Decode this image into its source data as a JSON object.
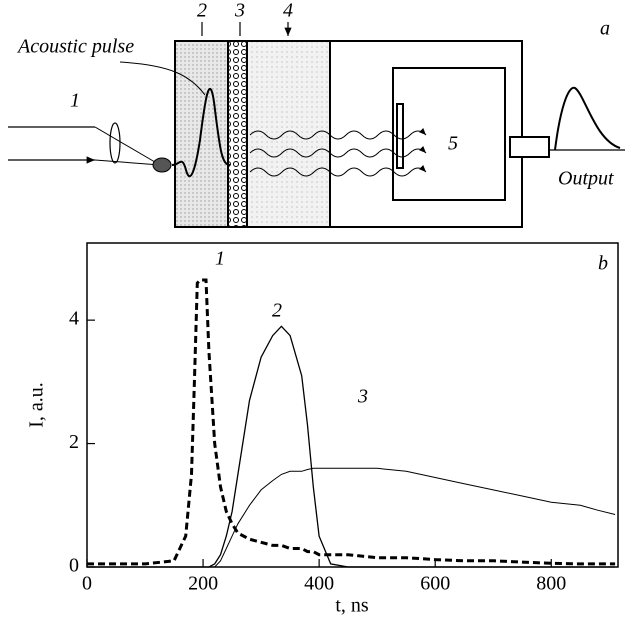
{
  "diagram": {
    "panel_label": "a",
    "pulse_label": "Acoustic pulse",
    "labels": [
      "1",
      "2",
      "3",
      "4",
      "5"
    ],
    "output_label": "Output"
  },
  "chart_data": {
    "type": "line",
    "panel_label": "b",
    "xlabel": "t, ns",
    "ylabel": "I, a.u.",
    "x": [
      0,
      100,
      150,
      170,
      180,
      185,
      190,
      195,
      205,
      210,
      220,
      230,
      240,
      250,
      260,
      280,
      300,
      320,
      335,
      350,
      370,
      380,
      390,
      400,
      420,
      450,
      500,
      550,
      600,
      650,
      700,
      750,
      800,
      850,
      880,
      910
    ],
    "series": [
      {
        "name": "1",
        "color": "#000000",
        "values": [
          0.05,
          0.05,
          0.1,
          0.5,
          1.5,
          3,
          4.6,
          4.65,
          4.65,
          3.5,
          2,
          1.3,
          0.9,
          0.7,
          0.55,
          0.45,
          0.4,
          0.35,
          0.35,
          0.3,
          0.3,
          0.25,
          0.25,
          0.2,
          0.2,
          0.2,
          0.15,
          0.15,
          0.12,
          0.1,
          0.1,
          0.08,
          0.06,
          0.05,
          0.05,
          0.05
        ]
      },
      {
        "name": "2",
        "color": "#000000",
        "values": [
          0,
          0,
          0,
          0,
          0,
          0,
          0,
          0,
          0,
          0,
          0.05,
          0.2,
          0.5,
          0.9,
          1.5,
          2.7,
          3.4,
          3.75,
          3.9,
          3.75,
          3.1,
          2.3,
          1.3,
          0.5,
          0.05,
          0,
          0,
          0,
          0,
          0,
          0,
          0,
          0,
          0,
          0,
          0
        ]
      },
      {
        "name": "3",
        "color": "#000000",
        "values": [
          0,
          0,
          0,
          0,
          0,
          0,
          0,
          0,
          0,
          0,
          0,
          0.1,
          0.3,
          0.5,
          0.7,
          1.0,
          1.25,
          1.4,
          1.5,
          1.55,
          1.55,
          1.58,
          1.6,
          1.6,
          1.6,
          1.6,
          1.6,
          1.55,
          1.45,
          1.35,
          1.25,
          1.15,
          1.05,
          1.0,
          0.92,
          0.85
        ]
      }
    ],
    "xlim": [
      0,
      915
    ],
    "ylim": [
      0,
      5.25
    ],
    "xticks": [
      0,
      200,
      400,
      600,
      800
    ],
    "yticks": [
      0,
      2,
      4
    ]
  }
}
